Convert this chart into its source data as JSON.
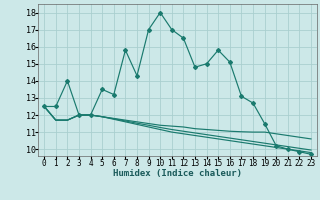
{
  "xlabel": "Humidex (Indice chaleur)",
  "bg_color": "#cce8e8",
  "line_color": "#1a7a6e",
  "grid_color": "#aacfcf",
  "xlim": [
    -0.5,
    23.5
  ],
  "ylim": [
    9.6,
    18.5
  ],
  "yticks": [
    10,
    11,
    12,
    13,
    14,
    15,
    16,
    17,
    18
  ],
  "xticks": [
    0,
    1,
    2,
    3,
    4,
    5,
    6,
    7,
    8,
    9,
    10,
    11,
    12,
    13,
    14,
    15,
    16,
    17,
    18,
    19,
    20,
    21,
    22,
    23
  ],
  "line1_x": [
    0,
    1,
    2,
    3,
    4,
    5,
    6,
    7,
    8,
    9,
    10,
    11,
    12,
    13,
    14,
    15,
    16,
    17,
    18,
    19,
    20,
    21,
    22,
    23
  ],
  "line1_y": [
    12.5,
    12.5,
    14.0,
    12.0,
    12.0,
    13.5,
    13.2,
    15.8,
    14.3,
    17.0,
    18.0,
    17.0,
    16.5,
    14.8,
    15.0,
    15.8,
    15.1,
    13.1,
    12.7,
    11.5,
    10.2,
    10.0,
    9.85,
    9.7
  ],
  "line2_x": [
    0,
    1,
    2,
    3,
    4,
    5,
    6,
    7,
    8,
    9,
    10,
    11,
    12,
    13,
    14,
    15,
    16,
    17,
    18,
    19,
    20,
    21,
    22,
    23
  ],
  "line2_y": [
    12.5,
    11.7,
    11.7,
    12.0,
    12.0,
    11.9,
    11.8,
    11.7,
    11.6,
    11.5,
    11.4,
    11.35,
    11.3,
    11.2,
    11.15,
    11.1,
    11.05,
    11.02,
    11.0,
    11.0,
    10.9,
    10.8,
    10.7,
    10.6
  ],
  "line3_x": [
    0,
    1,
    2,
    3,
    4,
    5,
    6,
    7,
    8,
    9,
    10,
    11,
    12,
    13,
    14,
    15,
    16,
    17,
    18,
    19,
    20,
    21,
    22,
    23
  ],
  "line3_y": [
    12.5,
    11.7,
    11.7,
    12.0,
    12.0,
    11.9,
    11.75,
    11.6,
    11.45,
    11.3,
    11.15,
    11.0,
    10.9,
    10.8,
    10.7,
    10.6,
    10.5,
    10.4,
    10.3,
    10.2,
    10.1,
    10.0,
    9.9,
    9.8
  ],
  "line4_x": [
    0,
    1,
    2,
    3,
    4,
    5,
    6,
    7,
    8,
    9,
    10,
    11,
    12,
    13,
    14,
    15,
    16,
    17,
    18,
    19,
    20,
    21,
    22,
    23
  ],
  "line4_y": [
    12.5,
    11.7,
    11.7,
    12.0,
    12.0,
    11.9,
    11.78,
    11.65,
    11.52,
    11.4,
    11.27,
    11.15,
    11.05,
    10.95,
    10.85,
    10.75,
    10.65,
    10.55,
    10.45,
    10.35,
    10.25,
    10.15,
    10.05,
    9.95
  ]
}
